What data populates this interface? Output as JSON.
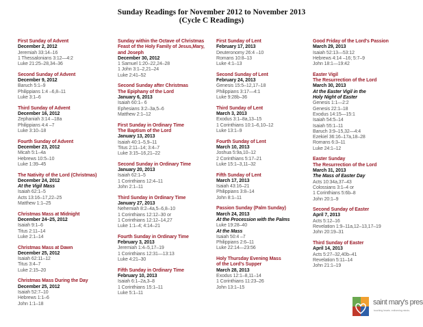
{
  "header": {
    "title": "Sunday Readings for November 2012 to November 2013",
    "subtitle": "(Cycle C Readings)"
  },
  "colors": {
    "heading": "#9b1d2a",
    "date": "#111111",
    "reading": "#555555"
  },
  "columns": [
    [
      {
        "lines": [
          [
            "t",
            "First Sunday of Advent"
          ],
          [
            "d",
            "December 2, 2012"
          ],
          [
            "r",
            "Jeremiah 33:14–16"
          ],
          [
            "r",
            "1 Thessalonians 3:12—4:2"
          ],
          [
            "r",
            "Luke 21:25–28,34–36"
          ]
        ]
      },
      {
        "lines": [
          [
            "t",
            "Second Sunday of Advent"
          ],
          [
            "d",
            "December 9, 2012"
          ],
          [
            "r",
            "Baruch 5:1–9"
          ],
          [
            "r",
            "Philippians 1:4 –6,8–11"
          ],
          [
            "r",
            "Luke 3:1–6"
          ]
        ]
      },
      {
        "lines": [
          [
            "t",
            "Third Sunday of Advent"
          ],
          [
            "d",
            "December 16, 2012"
          ],
          [
            "r",
            "Zephaniah 3:14 –18a"
          ],
          [
            "r",
            "Philippians 4:4 –7"
          ],
          [
            "r",
            "Luke 3:10–18"
          ]
        ]
      },
      {
        "lines": [
          [
            "t",
            "Fourth Sunday of Advent"
          ],
          [
            "d",
            "December 23, 2012"
          ],
          [
            "r",
            "Micah 5:1–4a"
          ],
          [
            "r",
            "Hebrews 10:5–10"
          ],
          [
            "r",
            "Luke 1:39–45"
          ]
        ]
      },
      {
        "lines": [
          [
            "t",
            "The Nativity of the Lord (Christmas)"
          ],
          [
            "d",
            "December 24, 2012"
          ],
          [
            "i",
            "At the Vigil Mass"
          ],
          [
            "r",
            "Isaiah 62:1–5"
          ],
          [
            "r",
            "Acts 13:16–17,22–25"
          ],
          [
            "r",
            "Matthew 1:1–25"
          ]
        ]
      },
      {
        "lines": [
          [
            "t",
            "Christmas Mass at Midnight"
          ],
          [
            "d",
            "December 24–25, 2012"
          ],
          [
            "r",
            "Isaiah 9:1–6"
          ],
          [
            "r",
            "Titus 2:11–14"
          ],
          [
            "r",
            "Luke 2:1–14"
          ]
        ]
      },
      {
        "lines": [
          [
            "t",
            "Christmas Mass at Dawn"
          ],
          [
            "d",
            "December 25, 2012"
          ],
          [
            "r",
            "Isaiah 62:11–12"
          ],
          [
            "r",
            "Titus 3:4–7"
          ],
          [
            "r",
            "Luke 2:15–20"
          ]
        ]
      },
      {
        "lines": [
          [
            "t",
            "Christmas Mass During the Day"
          ],
          [
            "d",
            "December 25, 2012"
          ],
          [
            "r",
            "Isaiah 52:7–10"
          ],
          [
            "r",
            "Hebrews 1:1–6"
          ],
          [
            "r",
            "John 1:1–18"
          ]
        ]
      }
    ],
    [
      {
        "lines": [
          [
            "t",
            "Sunday within the Octave of Christmas"
          ],
          [
            "t",
            "Feast of the Holy Family of Jesus,Mary,"
          ],
          [
            "t",
            "and Joseph"
          ],
          [
            "d",
            "December 30, 2012"
          ],
          [
            "r",
            "1 Samuel 1:20–22,24–28"
          ],
          [
            "r",
            "1 John 3:1–2,21–24"
          ],
          [
            "r",
            "Luke 2:41–52"
          ]
        ]
      },
      {
        "lines": [
          [
            "t",
            "Second Sunday after Christmas"
          ],
          [
            "t",
            "The Epiphany of the Lord"
          ],
          [
            "d",
            "January 6, 2013"
          ],
          [
            "r",
            "Isaiah 60:1– 6"
          ],
          [
            "r",
            "Ephesians 3:2–3a,5–6"
          ],
          [
            "r",
            "Matthew 2:1–12"
          ]
        ]
      },
      {
        "lines": [
          [
            "t",
            "First Sunday in Ordinary Time"
          ],
          [
            "t",
            "The Baptism of the Lord"
          ],
          [
            "d",
            "January 13, 2013"
          ],
          [
            "r",
            "Isaiah 40:1–5,9–11"
          ],
          [
            "r",
            "Titus 2:11–14; 3:4–7"
          ],
          [
            "r",
            "Luke 3:15–16,21–22"
          ]
        ]
      },
      {
        "lines": [
          [
            "t",
            "Second Sunday in Ordinary Time"
          ],
          [
            "d",
            "January 20, 2013"
          ],
          [
            "r",
            "Isaiah 62:1–5"
          ],
          [
            "r",
            "1 Corinthians 12:4–11"
          ],
          [
            "r",
            "John 2:1–11"
          ]
        ]
      },
      {
        "lines": [
          [
            "t",
            "Third Sunday in Ordinary Time"
          ],
          [
            "d",
            "January 27, 2013"
          ],
          [
            "r",
            "Nehemiah 8:2–4a,5–6,8–10"
          ],
          [
            "r",
            "1 Corinthians 12:12–30 or"
          ],
          [
            "r",
            "1 Corinthians 12:12–14,27"
          ],
          [
            "r",
            "Luke 1:1–4; 4:14–21"
          ]
        ]
      },
      {
        "lines": [
          [
            "t",
            "Fourth Sunday in Ordinary Time"
          ],
          [
            "d",
            "February 3, 2013"
          ],
          [
            "r",
            "Jeremiah 1:4–5,17–19"
          ],
          [
            "r",
            "1 Corinthians 12:31—13:13"
          ],
          [
            "r",
            "Luke 4:21–30"
          ]
        ]
      },
      {
        "lines": [
          [
            "t",
            "Fifth Sunday in Ordinary Time"
          ],
          [
            "d",
            "February 10, 2013"
          ],
          [
            "r",
            "Isaiah 6:1–2a,3–8"
          ],
          [
            "r",
            "1 Corinthians 15:1–11"
          ],
          [
            "r",
            "Luke 5:1–11"
          ]
        ]
      }
    ],
    [
      {
        "lines": [
          [
            "t",
            "First Sunday of Lent"
          ],
          [
            "d",
            "February 17, 2013"
          ],
          [
            "r",
            "Deuteronomy 26:4 –10"
          ],
          [
            "r",
            "Romans 10:8–13"
          ],
          [
            "r",
            "Luke 4:1–13"
          ]
        ]
      },
      {
        "lines": [
          [
            "t",
            "Second Sunday of Lent"
          ],
          [
            "d",
            "February 24, 2013"
          ],
          [
            "r",
            "Genesis 15:5–12,17–18"
          ],
          [
            "r",
            "Philippians 3:17—4:1"
          ],
          [
            "r",
            "Luke 9:28b–36"
          ]
        ]
      },
      {
        "lines": [
          [
            "t",
            "Third Sunday of Lent"
          ],
          [
            "d",
            "March 3, 2013"
          ],
          [
            "r",
            "Exodus 3:1–8a,13–15"
          ],
          [
            "r",
            "1 Corinthians 10:1–6,10–12"
          ],
          [
            "r",
            "Luke 13:1–9"
          ]
        ]
      },
      {
        "lines": [
          [
            "t",
            "Fourth Sunday of Lent"
          ],
          [
            "d",
            "March 10, 2013"
          ],
          [
            "r",
            "Joshua 5:9a,10–12"
          ],
          [
            "r",
            "2 Corinthians 5:17–21"
          ],
          [
            "r",
            "Luke 15:1–3,11–32"
          ]
        ]
      },
      {
        "lines": [
          [
            "t",
            "Fifth Sunday of Lent"
          ],
          [
            "d",
            "March 17, 2013"
          ],
          [
            "r",
            "Isaiah 43:16–21"
          ],
          [
            "r",
            "Philippians 3:8–14"
          ],
          [
            "r",
            "John 8:1–11"
          ]
        ]
      },
      {
        "lines": [
          [
            "t",
            "Passion Sunday (Palm Sunday)"
          ],
          [
            "d",
            "March 24, 2013"
          ],
          [
            "i",
            "At the Procession with the Palms"
          ],
          [
            "r",
            "Luke 19:28–40"
          ],
          [
            "i",
            "At the Mass"
          ],
          [
            "r",
            "Isaiah 50:4 –7"
          ],
          [
            "r",
            "Philippians 2:6–11"
          ],
          [
            "r",
            "Luke 22:14—23:56"
          ]
        ]
      },
      {
        "lines": [
          [
            "t",
            "Holy Thursday Evening Mass"
          ],
          [
            "t",
            "of the Lord's Supper"
          ],
          [
            "d",
            "March 28, 2013"
          ],
          [
            "r",
            "Exodus 12:1–8,11–14"
          ],
          [
            "r",
            "1 Corinthians 11:23–26"
          ],
          [
            "r",
            "John 13:1–15"
          ]
        ]
      }
    ],
    [
      {
        "lines": [
          [
            "t",
            "Good Friday of the Lord's Passion"
          ],
          [
            "d",
            "March 29, 2013"
          ],
          [
            "r",
            "Isaiah 52:13—53:12"
          ],
          [
            "r",
            "Hebrews 4:14 –16; 5:7–9"
          ],
          [
            "r",
            "John 18:1—19:42"
          ]
        ]
      },
      {
        "lines": [
          [
            "t",
            "Easter Vigil"
          ],
          [
            "t",
            "The Resurrection of the Lord"
          ],
          [
            "d",
            "March 30, 2013"
          ],
          [
            "i",
            "At the Easter Vigil in the"
          ],
          [
            "i",
            "Holy Night of Easter"
          ],
          [
            "r",
            "Genesis 1:1—2:2"
          ],
          [
            "r",
            "Genesis 22:1–18"
          ],
          [
            "r",
            "Exodus 14:15—15:1"
          ],
          [
            "r",
            "Isaiah 54:5–14"
          ],
          [
            "r",
            "Isaiah 55:1–11"
          ],
          [
            "r",
            "Baruch 3:9–15,32—4:4"
          ],
          [
            "r",
            "Ezekiel 36:16–17a,18–28"
          ],
          [
            "r",
            "Romans 6:3–11"
          ],
          [
            "r",
            "Luke 24:1–12"
          ]
        ]
      },
      {
        "lines": [
          [
            "t",
            "Easter Sunday"
          ],
          [
            "t",
            "The Resurrection of the Lord"
          ],
          [
            "d",
            "March 31, 2013"
          ],
          [
            "i",
            "The Mass of Easter Day"
          ],
          [
            "r",
            "Acts 10:34a,37–43"
          ],
          [
            "r",
            "Colossians 3:1–4 or"
          ],
          [
            "r",
            "1 Corinthians 5:6b–8"
          ],
          [
            "r",
            "John 20:1–9"
          ]
        ]
      },
      {
        "lines": [
          [
            "t",
            "Second Sunday of Easter"
          ],
          [
            "d",
            "April 7, 2013"
          ],
          [
            "r",
            "Acts 5:12–16"
          ],
          [
            "r",
            "Revelation 1:9–11a,12–13,17–19"
          ],
          [
            "r",
            "John 20:19–31"
          ]
        ]
      },
      {
        "lines": [
          [
            "t",
            "Third Sunday of Easter"
          ],
          [
            "d",
            "April 14, 2013"
          ],
          [
            "r",
            "Acts 5:27–32,40b–41"
          ],
          [
            "r",
            "Revelation 5:11–14"
          ],
          [
            "r",
            "John 21:1–19"
          ]
        ]
      }
    ]
  ],
  "logo": {
    "name": "saint mary's press",
    "tagline": "touching hearts. enlivening minds."
  }
}
